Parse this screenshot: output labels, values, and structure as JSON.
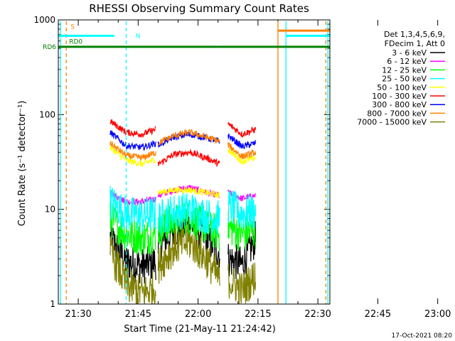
{
  "chart_data": {
    "type": "line",
    "title": "RHESSI Observing Summary Count Rates",
    "xlabel": "Start Time (21-May-11 21:24:42)",
    "ylabel": "Count Rate (s⁻¹ detector⁻¹)",
    "yscale": "log",
    "ylim": [
      1,
      1000
    ],
    "xlim_minutes": [
      -5,
      63
    ],
    "x_tick_labels": [
      "21:30",
      "21:45",
      "22:00",
      "22:15",
      "22:30",
      "22:45",
      "23:00"
    ],
    "y_tick_labels": [
      "1",
      "10",
      "100",
      "1000"
    ],
    "legend_header": [
      "Det 1,3,4,5,6,9,",
      "FDecim 1, Att 0"
    ],
    "legend_position": "right",
    "footer_timestamp": "17-Oct-2021 08:20",
    "x_reference_time": "21:30",
    "segments": [
      [
        8,
        19.5
      ],
      [
        20,
        35.5
      ],
      [
        37.5,
        44.5
      ]
    ],
    "series": [
      {
        "name": "3 - 6 keV",
        "color": "#000000",
        "x": [
          8,
          12,
          16,
          19.5,
          20,
          24,
          28,
          32,
          35.5,
          37.5,
          41,
          44.5
        ],
        "values": [
          5,
          2.8,
          2.5,
          2.8,
          4,
          6,
          7,
          5,
          3.5,
          3,
          2.6,
          5
        ]
      },
      {
        "name": "6 - 12 keV",
        "color": "#ff00ff",
        "x": [
          8,
          12,
          16,
          19.5,
          20,
          24,
          28,
          32,
          35.5,
          37.5,
          41,
          44.5
        ],
        "values": [
          15,
          12,
          12,
          13,
          14,
          16,
          17,
          15,
          14,
          15,
          13,
          14
        ]
      },
      {
        "name": "12 - 25 keV",
        "color": "#00ff00",
        "x": [
          8,
          12,
          16,
          19.5,
          20,
          24,
          28,
          32,
          35.5,
          37.5,
          41,
          44.5
        ],
        "values": [
          8,
          5.5,
          5,
          5.5,
          6,
          7.5,
          8,
          6.5,
          5.5,
          6.5,
          5.5,
          6
        ]
      },
      {
        "name": "25 - 50 keV",
        "color": "#00ffff",
        "x": [
          8,
          12,
          16,
          19.5,
          20,
          24,
          28,
          32,
          35.5,
          37.5,
          41,
          44.5
        ],
        "values": [
          12,
          9,
          8.5,
          9,
          8,
          9.5,
          10,
          8.5,
          8,
          11,
          9,
          9.5
        ]
      },
      {
        "name": "50 - 100 keV",
        "color": "#ffff00",
        "x": [
          8,
          12,
          16,
          19.5,
          20,
          24,
          28,
          32,
          35.5,
          37.5,
          41,
          44.5
        ],
        "values": [
          45,
          33,
          30,
          34,
          15,
          16,
          16,
          15,
          14,
          43,
          32,
          35
        ]
      },
      {
        "name": "100 - 300 keV",
        "color": "#ff0000",
        "x": [
          8,
          12,
          16,
          19.5,
          20,
          24,
          28,
          32,
          35.5,
          37.5,
          41,
          44.5
        ],
        "values": [
          85,
          65,
          62,
          70,
          30,
          38,
          40,
          35,
          30,
          80,
          62,
          70
        ]
      },
      {
        "name": "300 - 800 keV",
        "color": "#0000ff",
        "x": [
          8,
          12,
          16,
          19.5,
          20,
          24,
          28,
          32,
          35.5,
          37.5,
          41,
          44.5
        ],
        "values": [
          65,
          47,
          45,
          50,
          48,
          58,
          62,
          57,
          52,
          60,
          46,
          50
        ]
      },
      {
        "name": "800 - 7000 keV",
        "color": "#ff8000",
        "x": [
          8,
          12,
          16,
          19.5,
          20,
          24,
          28,
          32,
          35.5,
          37.5,
          41,
          44.5
        ],
        "values": [
          50,
          37,
          35,
          40,
          50,
          60,
          65,
          58,
          52,
          48,
          36,
          40
        ]
      },
      {
        "name": "7000 - 15000 keV",
        "color": "#808000",
        "x": [
          8,
          12,
          16,
          19.5,
          20,
          24,
          28,
          32,
          35.5,
          37.5,
          41,
          44.5
        ],
        "values": [
          3.5,
          1.6,
          1.3,
          1.5,
          2.5,
          4,
          4.5,
          3,
          1.8,
          1.8,
          1.4,
          2
        ]
      }
    ],
    "flag_bars": [
      {
        "label": "RD6",
        "color": "#008000",
        "level": 520,
        "segments": [
          [
            -5,
            18.5
          ],
          [
            18.5,
            35
          ],
          [
            35,
            48.5
          ],
          [
            48.5,
            63
          ]
        ]
      },
      {
        "label": "RD0",
        "color": "#008000",
        "level": 600,
        "segments": []
      },
      {
        "label": "N",
        "color": "#00ffff",
        "level": 680,
        "segments": [
          [
            -5,
            9
          ],
          [
            52,
            63
          ]
        ]
      },
      {
        "label": "S",
        "color": "#ff8000",
        "level": 770,
        "segments": [
          [
            50,
            63
          ]
        ]
      }
    ],
    "vertical_markers": [
      {
        "x": -3,
        "color": "#ff8000",
        "style": "dashed"
      },
      {
        "x": 12,
        "color": "#00ffff",
        "style": "dashed"
      },
      {
        "x": 52,
        "color": "#00ffff",
        "style": "solid"
      },
      {
        "x": 50,
        "color": "#ff8000",
        "style": "solid"
      },
      {
        "x": 62,
        "color": "#ff8000",
        "style": "dashed"
      },
      {
        "x": -4.5,
        "color": "#00ffff",
        "style": "solid"
      },
      {
        "x": 62.5,
        "color": "#00ffff",
        "style": "solid"
      }
    ]
  }
}
